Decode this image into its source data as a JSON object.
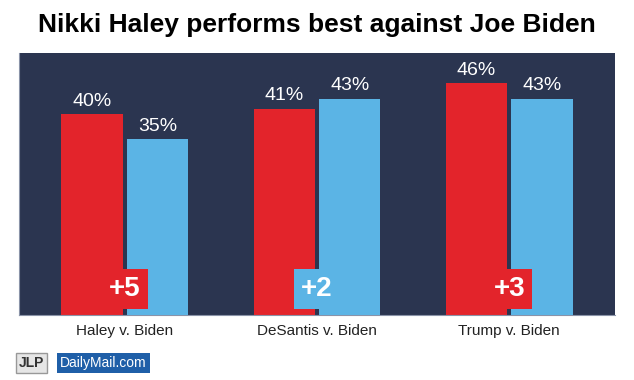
{
  "chart_data": {
    "type": "bar",
    "title": "Nikki Haley performs best against Joe Biden",
    "categories": [
      "Haley v. Biden",
      "DeSantis v. Biden",
      "Trump v. Biden"
    ],
    "series": [
      {
        "color": "#e3242b",
        "values": [
          40,
          41,
          46
        ],
        "value_labels": [
          "40%",
          "41%",
          "46%"
        ]
      },
      {
        "color": "#5bb4e5",
        "values": [
          35,
          43,
          43
        ],
        "value_labels": [
          "35%",
          "43%",
          "43%"
        ]
      }
    ],
    "margin_labels": [
      "+5",
      "+2",
      "+3"
    ],
    "source_labels": [
      "JLP",
      "DailyMail.com"
    ],
    "ylim": [
      0,
      52
    ],
    "yticks": [],
    "data_labels": true,
    "tick_labels": "x",
    "grid": false
  }
}
